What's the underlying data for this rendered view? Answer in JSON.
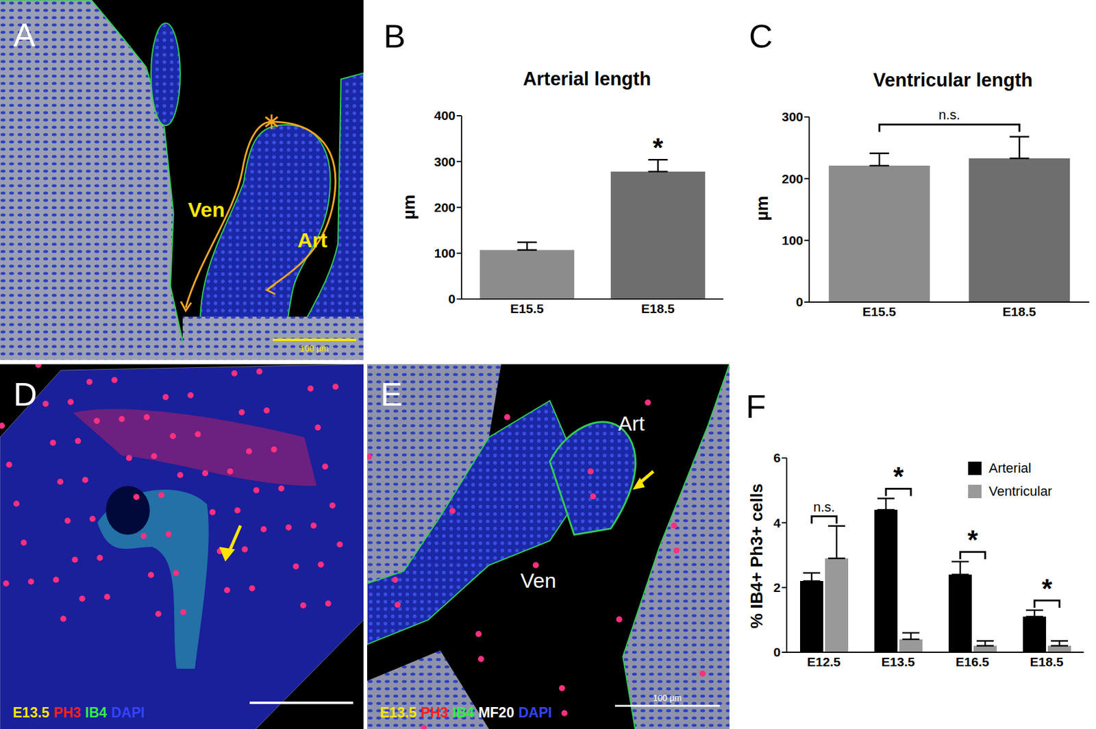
{
  "images": [
    {
      "panel": "A",
      "texts": [
        "Ven",
        "Art"
      ],
      "scale_bar": "100 µm"
    },
    {
      "panel": "D",
      "stain": [
        {
          "text": "E13.5",
          "color": "#ffe600"
        },
        {
          "text": "PH3",
          "color": "#ff2020"
        },
        {
          "text": "IB4",
          "color": "#33ee44"
        },
        {
          "text": "DAPI",
          "color": "#3344ff"
        }
      ]
    },
    {
      "panel": "E",
      "texts": [
        "Art",
        "Ven"
      ],
      "stain": [
        {
          "text": "E13.5",
          "color": "#ffe600"
        },
        {
          "text": "PH3",
          "color": "#ff2020"
        },
        {
          "text": "IB4",
          "color": "#33ee44"
        },
        {
          "text": "MF20",
          "color": "#ffffff"
        },
        {
          "text": "DAPI",
          "color": "#3344ff"
        }
      ],
      "scale_bar": "100 µm"
    }
  ],
  "chart_data": [
    {
      "panel": "B",
      "type": "bar",
      "title": "Arterial length",
      "y_label": "µm",
      "categories": [
        "E15.5",
        "E18.5"
      ],
      "values": [
        107,
        278
      ],
      "errors": [
        17,
        26
      ],
      "colors": [
        "#8c8c8c",
        "#6e6e6e"
      ],
      "ylim": [
        0,
        400
      ],
      "yticks": [
        0,
        100,
        200,
        300,
        400
      ],
      "annotations": [
        {
          "categories": [
            "E18.5"
          ],
          "text": "*"
        }
      ]
    },
    {
      "panel": "C",
      "type": "bar",
      "title": "Ventricular length",
      "y_label": "µm",
      "categories": [
        "E15.5",
        "E18.5"
      ],
      "values": [
        221,
        233
      ],
      "errors": [
        20,
        35
      ],
      "colors": [
        "#8c8c8c",
        "#6e6e6e"
      ],
      "ylim": [
        0,
        300
      ],
      "yticks": [
        0,
        100,
        200,
        300
      ],
      "annotations": [
        {
          "categories": [
            "E15.5",
            "E18.5"
          ],
          "text": "n.s."
        }
      ]
    },
    {
      "panel": "F",
      "type": "bar",
      "y_label": "% IB4+ Ph3+ cells",
      "categories": [
        "E12.5",
        "E13.5",
        "E16.5",
        "E18.5"
      ],
      "series": [
        {
          "name": "Arterial",
          "color": "#000000",
          "values": [
            2.2,
            4.4,
            2.4,
            1.1
          ],
          "errors": [
            0.25,
            0.35,
            0.4,
            0.2
          ]
        },
        {
          "name": "Ventricular",
          "color": "#999999",
          "values": [
            2.9,
            0.4,
            0.2,
            0.2
          ],
          "errors": [
            1.0,
            0.2,
            0.15,
            0.15
          ]
        }
      ],
      "ylim": [
        0,
        6
      ],
      "yticks": [
        0,
        2,
        4,
        6
      ],
      "legend": "top-right",
      "annotations": [
        {
          "category": "E12.5",
          "text": "n.s."
        },
        {
          "category": "E13.5",
          "text": "*"
        },
        {
          "category": "E16.5",
          "text": "*"
        },
        {
          "category": "E18.5",
          "text": "*"
        }
      ]
    }
  ]
}
